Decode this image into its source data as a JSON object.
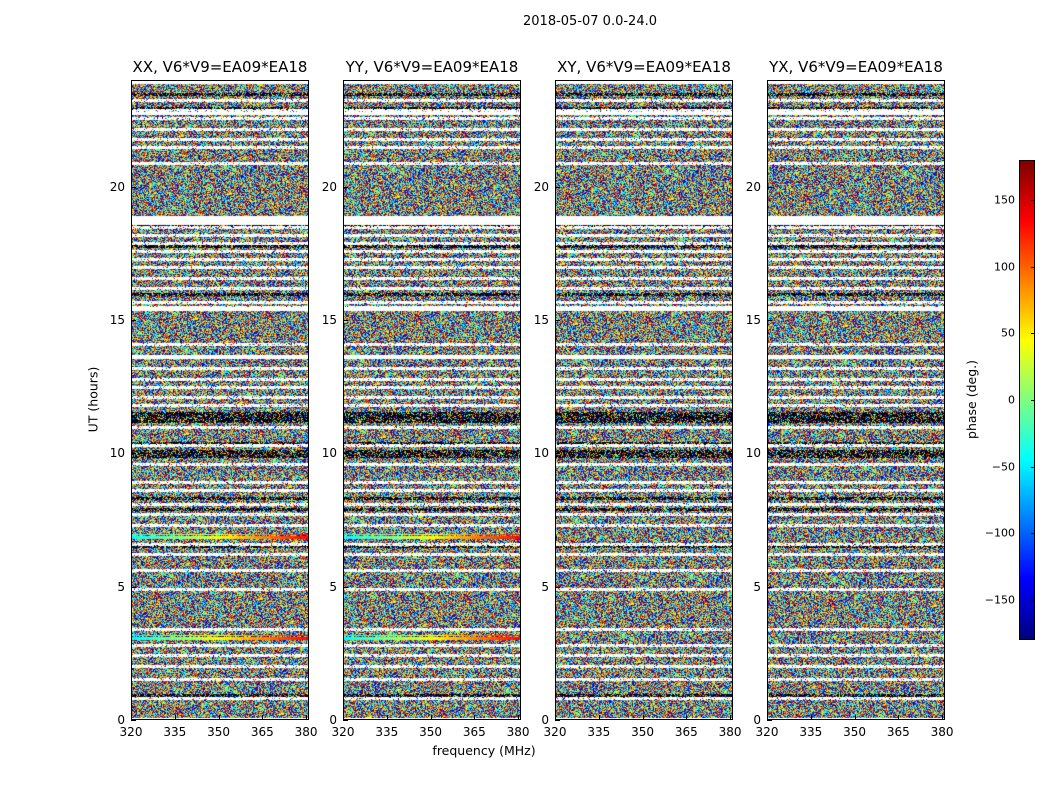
{
  "chart_data": {
    "type": "heatmap",
    "suptitle": "2018-05-07 0.0-24.0",
    "xlabel": "frequency (MHz)",
    "ylabel": "UT (hours)",
    "xlim": [
      320,
      381
    ],
    "ylim": [
      0,
      24
    ],
    "xticks": [
      320,
      335,
      350,
      365,
      380
    ],
    "yticks": [
      0,
      5,
      10,
      15,
      20
    ],
    "panels": [
      {
        "title": "XX, V6*V9=EA09*EA18"
      },
      {
        "title": "YY, V6*V9=EA09*EA18"
      },
      {
        "title": "XY, V6*V9=EA09*EA18"
      },
      {
        "title": "YX, V6*V9=EA09*EA18"
      }
    ],
    "colorbar": {
      "label": "phase (deg.)",
      "range": [
        -180,
        180
      ],
      "ticks": [
        "150",
        "100",
        "50",
        "0",
        "−50",
        "−100",
        "−150"
      ],
      "tick_values": [
        150,
        100,
        50,
        0,
        -50,
        -100,
        -150
      ],
      "colormap": "jet"
    },
    "flagged_ut_hours": [
      0.8,
      1.5,
      2.0,
      2.4,
      2.8,
      3.4,
      4.9,
      5.6,
      6.2,
      6.6,
      7.3,
      7.7,
      8.1,
      8.6,
      8.9,
      9.6,
      10.3,
      11.0,
      11.8,
      12.1,
      12.5,
      12.8,
      13.2,
      13.6,
      14.1,
      15.5,
      15.7,
      16.2,
      16.6,
      17.0,
      17.3,
      17.6,
      17.9,
      18.2,
      18.5,
      18.8,
      20.9,
      21.5,
      21.8,
      22.2,
      22.6,
      22.9,
      23.3
    ],
    "dark_ut_hours": [
      0.9,
      6.5,
      7.9,
      8.3,
      9.9,
      10.0,
      10.1,
      10.4,
      11.2,
      11.3,
      11.4,
      11.5,
      16.0,
      17.8,
      18.6,
      23.5,
      23.0
    ],
    "coherent_ut_hours": {
      "XX": [
        3.1,
        6.9
      ],
      "YY": [
        3.1,
        6.9
      ]
    },
    "colors": {
      "axis": "#000000",
      "background": "#ffffff"
    }
  }
}
